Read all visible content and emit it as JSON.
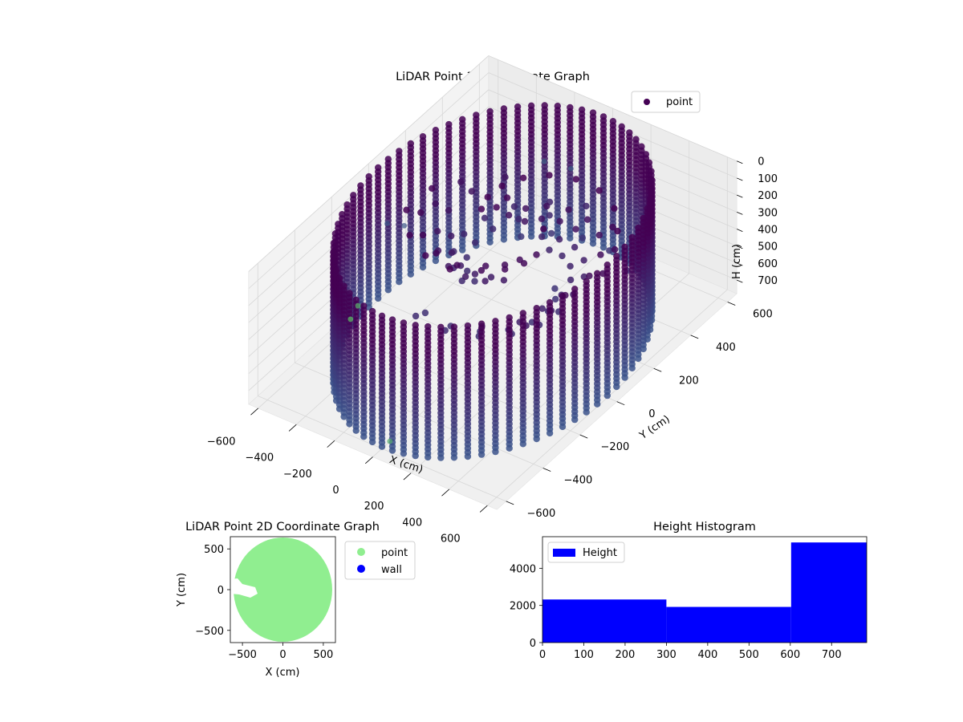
{
  "colors": {
    "point_2d": "#90ee90",
    "wall_2d": "#0000ff",
    "hist_bar": "#0000ff",
    "scatter_dark": "#440154",
    "scatter_mid": "#3b528b",
    "scatter_light": "#5ec962",
    "pane": "#f2f2f2"
  },
  "chart_data": [
    {
      "type": "scatter",
      "projection": "3d",
      "title": "LiDAR Point 3D Coordinate Graph",
      "xlabel": "X (cm)",
      "ylabel": "Y (cm)",
      "zlabel": "H (cm)",
      "legend": [
        {
          "label": "point",
          "color": "#440154"
        }
      ],
      "legend_position": "top-right",
      "x_ticks": [
        "−600",
        "−400",
        "−200",
        "0",
        "200",
        "400",
        "600"
      ],
      "y_ticks": [
        "−600",
        "−400",
        "−200",
        "0",
        "200",
        "400",
        "600"
      ],
      "z_ticks": [
        "0",
        "100",
        "200",
        "300",
        "400",
        "500",
        "600",
        "700"
      ],
      "xlim": [
        -650,
        650
      ],
      "ylim": [
        -650,
        650
      ],
      "zlim": [
        780,
        0
      ],
      "z_inverted": true,
      "colormap": "viridis",
      "cylinder": {
        "radius_cm": 600,
        "height_min_cm": 0,
        "height_max_cm": 780
      },
      "outliers": [
        {
          "x": -630,
          "y": 80,
          "z": 420
        },
        {
          "x": -560,
          "y": 100,
          "z": 420
        },
        {
          "x": -330,
          "y": 620,
          "z": 440
        },
        {
          "x": -200,
          "y": 630,
          "z": 430
        },
        {
          "x": -590,
          "y": -120,
          "z": 690
        },
        {
          "x": -590,
          "y": -160,
          "z": 730
        },
        {
          "x": 80,
          "y": -640,
          "z": 660
        }
      ]
    },
    {
      "type": "scatter",
      "title": "LiDAR Point 2D Coordinate Graph",
      "xlabel": "X (cm)",
      "ylabel": "Y (cm)",
      "x_ticks": [
        "−500",
        "0",
        "500"
      ],
      "y_ticks": [
        "500",
        "0",
        "−500"
      ],
      "xlim": [
        -650,
        650
      ],
      "ylim": [
        -650,
        650
      ],
      "series": [
        {
          "name": "point",
          "color": "#90ee90"
        },
        {
          "name": "wall",
          "color": "#0000ff"
        }
      ],
      "legend_position": "outside-right"
    },
    {
      "type": "bar",
      "title": "Height Histogram",
      "legend": [
        {
          "label": "Height",
          "color": "#0000ff"
        }
      ],
      "legend_position": "top-left",
      "x_ticks": [
        "0",
        "100",
        "200",
        "300",
        "400",
        "500",
        "600",
        "700"
      ],
      "y_ticks": [
        "0",
        "2000",
        "4000"
      ],
      "xlim": [
        0,
        785
      ],
      "ylim": [
        0,
        5700
      ],
      "bins": [
        {
          "start": 0,
          "end": 300,
          "value": 2320
        },
        {
          "start": 300,
          "end": 602,
          "value": 1920
        },
        {
          "start": 602,
          "end": 785,
          "value": 5390
        }
      ]
    }
  ]
}
